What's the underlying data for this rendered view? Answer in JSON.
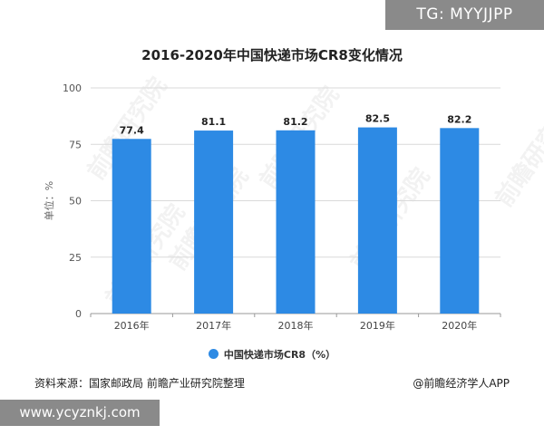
{
  "tags": {
    "top": "TG: MYYJJPP",
    "bottom": "www.ycyznkj.com"
  },
  "footer": {
    "source": "资料来源：国家邮政局 前瞻产业研究院整理",
    "credit": "@前瞻经济学人APP"
  },
  "watermark": "前瞻研究院",
  "colors": {
    "bar": "#2d8ae4",
    "grid": "#d9d9d9",
    "axis": "#999999"
  },
  "chart_data": {
    "type": "bar",
    "title": "2016-2020年中国快递市场CR8变化情况",
    "ylabel": "单位：%",
    "xlabel": "",
    "categories": [
      "2016年",
      "2017年",
      "2018年",
      "2019年",
      "2020年"
    ],
    "series": [
      {
        "name": "中国快递市场CR8（%）",
        "values": [
          77.4,
          81.1,
          81.2,
          82.5,
          82.2
        ]
      }
    ],
    "value_labels": [
      "77.4",
      "81.1",
      "81.2",
      "82.5",
      "82.2"
    ],
    "ylim": [
      0,
      100
    ],
    "yticks": [
      "0",
      "25",
      "50",
      "75",
      "100"
    ],
    "grid": true,
    "legend": "bottom-center"
  }
}
